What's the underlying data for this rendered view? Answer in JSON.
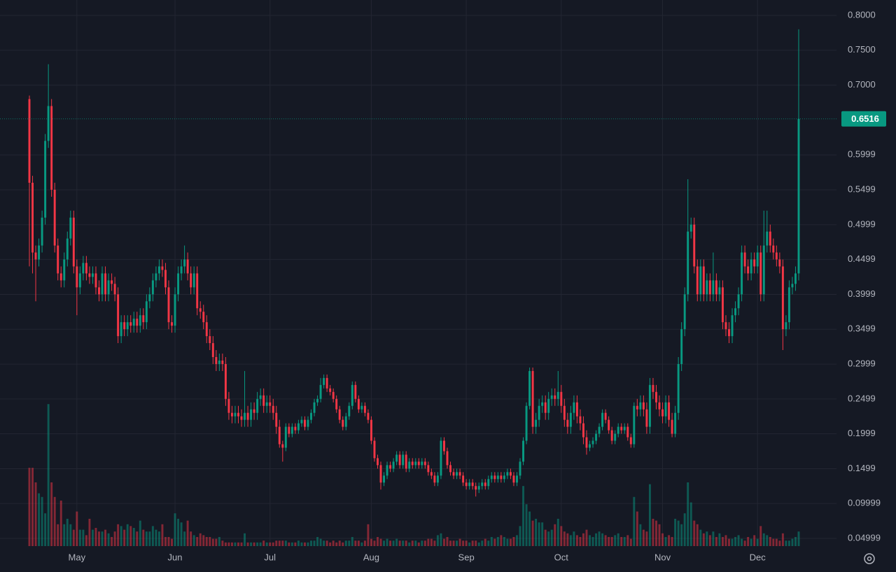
{
  "chart_data": {
    "type": "candlestick",
    "categories": [
      null,
      null,
      null,
      null,
      null,
      null,
      null,
      null,
      null,
      null,
      null,
      null,
      null,
      null,
      null,
      "May",
      null,
      null,
      null,
      null,
      null,
      null,
      null,
      null,
      null,
      null,
      null,
      null,
      null,
      null,
      null,
      null,
      null,
      null,
      null,
      null,
      null,
      null,
      null,
      null,
      null,
      null,
      null,
      null,
      null,
      null,
      "Jun",
      null,
      null,
      null,
      null,
      null,
      null,
      null,
      null,
      null,
      null,
      null,
      null,
      null,
      null,
      null,
      null,
      null,
      null,
      null,
      null,
      null,
      null,
      null,
      null,
      null,
      null,
      null,
      null,
      null,
      "Jul",
      null,
      null,
      null,
      null,
      null,
      null,
      null,
      null,
      null,
      null,
      null,
      null,
      null,
      null,
      null,
      null,
      null,
      null,
      null,
      null,
      null,
      null,
      null,
      null,
      null,
      null,
      null,
      null,
      null,
      null,
      null,
      "Aug",
      null,
      null,
      null,
      null,
      null,
      null,
      null,
      null,
      null,
      null,
      null,
      null,
      null,
      null,
      null,
      null,
      null,
      null,
      null,
      null,
      null,
      null,
      null,
      null,
      null,
      null,
      null,
      null,
      null,
      "Sep",
      null,
      null,
      null,
      null,
      null,
      null,
      null,
      null,
      null,
      null,
      null,
      null,
      null,
      null,
      null,
      null,
      null,
      null,
      null,
      null,
      null,
      null,
      null,
      null,
      null,
      null,
      null,
      null,
      null,
      "Oct",
      null,
      null,
      null,
      null,
      null,
      null,
      null,
      null,
      null,
      null,
      null,
      null,
      null,
      null,
      null,
      null,
      null,
      null,
      null,
      null,
      null,
      null,
      null,
      null,
      null,
      null,
      null,
      null,
      null,
      null,
      null,
      "Nov",
      null,
      null,
      null,
      null,
      null,
      null,
      null,
      null,
      null,
      null,
      null,
      null,
      null,
      null,
      null,
      null,
      null,
      null,
      null,
      null,
      null,
      null,
      null,
      null,
      null,
      null,
      null,
      null,
      null,
      "Dec",
      null,
      null,
      null,
      null,
      null,
      null,
      null,
      null,
      null,
      null,
      null,
      null,
      null
    ],
    "open": [
      0.68,
      0.56,
      0.46,
      0.45,
      0.47,
      0.51,
      0.62,
      0.67,
      0.55,
      0.47,
      0.43,
      0.42,
      0.45,
      0.48,
      0.51,
      0.44,
      0.41,
      0.43,
      0.445,
      0.43,
      0.425,
      0.43,
      0.41,
      0.4,
      0.43,
      0.4,
      0.42,
      0.415,
      0.4,
      0.34,
      0.36,
      0.35,
      0.36,
      0.355,
      0.365,
      0.355,
      0.37,
      0.36,
      0.39,
      0.4,
      0.42,
      0.43,
      0.44,
      0.435,
      0.41,
      0.36,
      0.355,
      0.4,
      0.43,
      0.44,
      0.45,
      0.43,
      0.41,
      0.43,
      0.38,
      0.375,
      0.36,
      0.34,
      0.33,
      0.31,
      0.3,
      0.305,
      0.3,
      0.25,
      0.23,
      0.225,
      0.23,
      0.225,
      0.22,
      0.23,
      0.22,
      0.235,
      0.23,
      0.25,
      0.255,
      0.24,
      0.245,
      0.24,
      0.23,
      0.21,
      0.185,
      0.18,
      0.21,
      0.2,
      0.21,
      0.205,
      0.215,
      0.22,
      0.21,
      0.22,
      0.23,
      0.245,
      0.25,
      0.27,
      0.28,
      0.265,
      0.26,
      0.25,
      0.235,
      0.22,
      0.21,
      0.225,
      0.24,
      0.27,
      0.25,
      0.235,
      0.24,
      0.23,
      0.22,
      0.19,
      0.165,
      0.155,
      0.13,
      0.14,
      0.155,
      0.15,
      0.16,
      0.17,
      0.155,
      0.17,
      0.15,
      0.16,
      0.155,
      0.16,
      0.155,
      0.16,
      0.155,
      0.145,
      0.14,
      0.13,
      0.14,
      0.19,
      0.175,
      0.155,
      0.145,
      0.14,
      0.145,
      0.14,
      0.13,
      0.125,
      0.13,
      0.125,
      0.12,
      0.125,
      0.13,
      0.125,
      0.135,
      0.14,
      0.135,
      0.14,
      0.135,
      0.14,
      0.145,
      0.14,
      0.13,
      0.14,
      0.16,
      0.19,
      0.24,
      0.29,
      0.21,
      0.22,
      0.24,
      0.245,
      0.23,
      0.25,
      0.255,
      0.25,
      0.26,
      0.24,
      0.22,
      0.21,
      0.23,
      0.245,
      0.225,
      0.215,
      0.195,
      0.18,
      0.185,
      0.19,
      0.2,
      0.21,
      0.23,
      0.22,
      0.205,
      0.19,
      0.2,
      0.21,
      0.205,
      0.21,
      0.195,
      0.185,
      0.24,
      0.235,
      0.245,
      0.235,
      0.21,
      0.27,
      0.26,
      0.245,
      0.235,
      0.225,
      0.245,
      0.22,
      0.2,
      0.23,
      0.3,
      0.35,
      0.4,
      0.49,
      0.5,
      0.44,
      0.4,
      0.44,
      0.4,
      0.42,
      0.4,
      0.42,
      0.4,
      0.41,
      0.36,
      0.35,
      0.34,
      0.37,
      0.38,
      0.4,
      0.46,
      0.44,
      0.43,
      0.45,
      0.44,
      0.46,
      0.4,
      0.47,
      0.49,
      0.47,
      0.46,
      0.45,
      0.44,
      0.35,
      0.36,
      0.41,
      0.415,
      0.43
    ],
    "high": [
      0.685,
      0.57,
      0.47,
      0.48,
      0.52,
      0.63,
      0.73,
      0.68,
      0.56,
      0.48,
      0.44,
      0.46,
      0.49,
      0.52,
      0.52,
      0.45,
      0.44,
      0.455,
      0.455,
      0.44,
      0.44,
      0.44,
      0.42,
      0.44,
      0.44,
      0.43,
      0.43,
      0.425,
      0.41,
      0.37,
      0.37,
      0.37,
      0.37,
      0.375,
      0.375,
      0.38,
      0.38,
      0.4,
      0.41,
      0.43,
      0.44,
      0.45,
      0.45,
      0.445,
      0.42,
      0.37,
      0.41,
      0.44,
      0.45,
      0.47,
      0.46,
      0.44,
      0.44,
      0.44,
      0.39,
      0.385,
      0.37,
      0.35,
      0.34,
      0.32,
      0.315,
      0.315,
      0.31,
      0.26,
      0.24,
      0.24,
      0.24,
      0.235,
      0.29,
      0.24,
      0.245,
      0.245,
      0.26,
      0.265,
      0.265,
      0.255,
      0.255,
      0.25,
      0.24,
      0.22,
      0.19,
      0.215,
      0.215,
      0.215,
      0.215,
      0.22,
      0.225,
      0.225,
      0.225,
      0.235,
      0.25,
      0.255,
      0.28,
      0.285,
      0.285,
      0.27,
      0.265,
      0.255,
      0.24,
      0.225,
      0.23,
      0.245,
      0.275,
      0.275,
      0.255,
      0.245,
      0.245,
      0.235,
      0.225,
      0.195,
      0.17,
      0.16,
      0.145,
      0.16,
      0.16,
      0.165,
      0.175,
      0.175,
      0.175,
      0.175,
      0.165,
      0.165,
      0.165,
      0.165,
      0.165,
      0.165,
      0.16,
      0.15,
      0.145,
      0.145,
      0.195,
      0.195,
      0.18,
      0.16,
      0.15,
      0.15,
      0.15,
      0.145,
      0.135,
      0.135,
      0.135,
      0.13,
      0.13,
      0.135,
      0.135,
      0.14,
      0.145,
      0.145,
      0.145,
      0.145,
      0.145,
      0.15,
      0.15,
      0.145,
      0.145,
      0.165,
      0.195,
      0.245,
      0.295,
      0.295,
      0.23,
      0.25,
      0.255,
      0.255,
      0.26,
      0.265,
      0.265,
      0.29,
      0.27,
      0.25,
      0.23,
      0.24,
      0.255,
      0.255,
      0.235,
      0.225,
      0.205,
      0.19,
      0.195,
      0.205,
      0.215,
      0.235,
      0.235,
      0.225,
      0.21,
      0.205,
      0.215,
      0.215,
      0.215,
      0.215,
      0.2,
      0.245,
      0.25,
      0.255,
      0.255,
      0.245,
      0.28,
      0.28,
      0.27,
      0.255,
      0.245,
      0.255,
      0.255,
      0.23,
      0.24,
      0.31,
      0.36,
      0.41,
      0.565,
      0.51,
      0.51,
      0.45,
      0.45,
      0.45,
      0.43,
      0.43,
      0.46,
      0.43,
      0.42,
      0.42,
      0.37,
      0.36,
      0.38,
      0.39,
      0.41,
      0.47,
      0.47,
      0.45,
      0.46,
      0.46,
      0.47,
      0.47,
      0.52,
      0.52,
      0.5,
      0.48,
      0.47,
      0.46,
      0.45,
      0.37,
      0.42,
      0.425,
      0.44,
      0.78
    ],
    "low": [
      0.44,
      0.43,
      0.39,
      0.44,
      0.46,
      0.5,
      0.61,
      0.54,
      0.46,
      0.42,
      0.41,
      0.41,
      0.44,
      0.47,
      0.43,
      0.37,
      0.4,
      0.42,
      0.42,
      0.415,
      0.415,
      0.4,
      0.39,
      0.39,
      0.39,
      0.39,
      0.405,
      0.39,
      0.33,
      0.33,
      0.34,
      0.34,
      0.345,
      0.345,
      0.345,
      0.345,
      0.35,
      0.35,
      0.38,
      0.39,
      0.41,
      0.42,
      0.425,
      0.4,
      0.35,
      0.345,
      0.345,
      0.39,
      0.42,
      0.43,
      0.42,
      0.4,
      0.4,
      0.37,
      0.365,
      0.35,
      0.33,
      0.32,
      0.3,
      0.29,
      0.29,
      0.29,
      0.24,
      0.22,
      0.215,
      0.215,
      0.215,
      0.21,
      0.21,
      0.21,
      0.21,
      0.22,
      0.22,
      0.24,
      0.23,
      0.23,
      0.23,
      0.22,
      0.2,
      0.18,
      0.16,
      0.175,
      0.195,
      0.195,
      0.2,
      0.2,
      0.21,
      0.205,
      0.205,
      0.215,
      0.225,
      0.24,
      0.245,
      0.265,
      0.26,
      0.255,
      0.245,
      0.23,
      0.215,
      0.205,
      0.205,
      0.22,
      0.235,
      0.245,
      0.23,
      0.23,
      0.225,
      0.215,
      0.185,
      0.16,
      0.15,
      0.12,
      0.125,
      0.135,
      0.145,
      0.145,
      0.155,
      0.15,
      0.15,
      0.145,
      0.145,
      0.15,
      0.15,
      0.15,
      0.15,
      0.15,
      0.14,
      0.135,
      0.125,
      0.125,
      0.135,
      0.17,
      0.15,
      0.14,
      0.135,
      0.135,
      0.135,
      0.125,
      0.12,
      0.12,
      0.12,
      0.11,
      0.115,
      0.12,
      0.12,
      0.12,
      0.13,
      0.13,
      0.13,
      0.13,
      0.13,
      0.135,
      0.135,
      0.125,
      0.125,
      0.135,
      0.155,
      0.185,
      0.235,
      0.2,
      0.2,
      0.21,
      0.23,
      0.22,
      0.22,
      0.24,
      0.24,
      0.24,
      0.23,
      0.21,
      0.2,
      0.2,
      0.22,
      0.215,
      0.205,
      0.185,
      0.17,
      0.175,
      0.18,
      0.185,
      0.195,
      0.205,
      0.215,
      0.2,
      0.185,
      0.185,
      0.195,
      0.2,
      0.2,
      0.19,
      0.18,
      0.18,
      0.225,
      0.225,
      0.225,
      0.2,
      0.2,
      0.25,
      0.235,
      0.225,
      0.215,
      0.215,
      0.21,
      0.195,
      0.195,
      0.22,
      0.29,
      0.34,
      0.39,
      0.48,
      0.43,
      0.39,
      0.39,
      0.39,
      0.39,
      0.39,
      0.39,
      0.39,
      0.39,
      0.35,
      0.34,
      0.33,
      0.33,
      0.36,
      0.37,
      0.39,
      0.43,
      0.42,
      0.42,
      0.43,
      0.43,
      0.39,
      0.39,
      0.46,
      0.46,
      0.45,
      0.44,
      0.43,
      0.32,
      0.34,
      0.35,
      0.4,
      0.405,
      0.42
    ],
    "close": [
      0.56,
      0.46,
      0.45,
      0.47,
      0.51,
      0.62,
      0.67,
      0.55,
      0.47,
      0.43,
      0.42,
      0.45,
      0.48,
      0.51,
      0.44,
      0.41,
      0.43,
      0.445,
      0.43,
      0.425,
      0.43,
      0.41,
      0.4,
      0.43,
      0.4,
      0.42,
      0.415,
      0.4,
      0.34,
      0.36,
      0.35,
      0.36,
      0.355,
      0.365,
      0.355,
      0.37,
      0.36,
      0.39,
      0.4,
      0.42,
      0.43,
      0.44,
      0.435,
      0.41,
      0.36,
      0.355,
      0.4,
      0.43,
      0.44,
      0.45,
      0.43,
      0.41,
      0.43,
      0.38,
      0.375,
      0.36,
      0.34,
      0.33,
      0.31,
      0.3,
      0.305,
      0.3,
      0.25,
      0.23,
      0.225,
      0.23,
      0.225,
      0.22,
      0.23,
      0.22,
      0.235,
      0.23,
      0.25,
      0.255,
      0.24,
      0.245,
      0.24,
      0.23,
      0.21,
      0.185,
      0.18,
      0.21,
      0.2,
      0.21,
      0.205,
      0.215,
      0.22,
      0.21,
      0.22,
      0.23,
      0.245,
      0.25,
      0.27,
      0.28,
      0.265,
      0.26,
      0.25,
      0.235,
      0.22,
      0.21,
      0.225,
      0.24,
      0.27,
      0.25,
      0.235,
      0.24,
      0.23,
      0.22,
      0.19,
      0.165,
      0.155,
      0.13,
      0.14,
      0.155,
      0.15,
      0.16,
      0.17,
      0.155,
      0.17,
      0.15,
      0.16,
      0.155,
      0.16,
      0.155,
      0.16,
      0.155,
      0.145,
      0.14,
      0.13,
      0.14,
      0.19,
      0.175,
      0.155,
      0.145,
      0.14,
      0.145,
      0.14,
      0.13,
      0.125,
      0.13,
      0.125,
      0.12,
      0.125,
      0.13,
      0.125,
      0.135,
      0.14,
      0.135,
      0.14,
      0.135,
      0.14,
      0.145,
      0.14,
      0.13,
      0.14,
      0.16,
      0.19,
      0.24,
      0.29,
      0.21,
      0.22,
      0.24,
      0.245,
      0.23,
      0.25,
      0.255,
      0.25,
      0.26,
      0.24,
      0.22,
      0.21,
      0.23,
      0.245,
      0.225,
      0.215,
      0.195,
      0.18,
      0.185,
      0.19,
      0.2,
      0.21,
      0.23,
      0.22,
      0.205,
      0.19,
      0.2,
      0.21,
      0.205,
      0.21,
      0.195,
      0.185,
      0.24,
      0.235,
      0.245,
      0.235,
      0.21,
      0.27,
      0.26,
      0.245,
      0.235,
      0.225,
      0.245,
      0.22,
      0.2,
      0.23,
      0.3,
      0.35,
      0.4,
      0.49,
      0.5,
      0.44,
      0.4,
      0.44,
      0.4,
      0.42,
      0.4,
      0.42,
      0.4,
      0.41,
      0.36,
      0.35,
      0.34,
      0.37,
      0.38,
      0.4,
      0.46,
      0.44,
      0.43,
      0.45,
      0.44,
      0.46,
      0.4,
      0.47,
      0.49,
      0.47,
      0.46,
      0.45,
      0.44,
      0.35,
      0.36,
      0.41,
      0.415,
      0.43,
      0.6516
    ],
    "volume": [
      43,
      43,
      35,
      29,
      27,
      18,
      78,
      35,
      27,
      12,
      25,
      12,
      15,
      12,
      9,
      19,
      9,
      9,
      6,
      15,
      9,
      10,
      8,
      8,
      9,
      7,
      5,
      8,
      12,
      11,
      9,
      12,
      11,
      10,
      8,
      14,
      9,
      8,
      8,
      11,
      9,
      8,
      12,
      5,
      5,
      4,
      18,
      15,
      13,
      8,
      14,
      8,
      6,
      5,
      7,
      6,
      5,
      5,
      4,
      4,
      5,
      3,
      2,
      2,
      2,
      2,
      2,
      2,
      7,
      2,
      2,
      2,
      2,
      2,
      3,
      2,
      2,
      2,
      3,
      3,
      3,
      3,
      2,
      2,
      2,
      3,
      2,
      2,
      2,
      3,
      3,
      5,
      4,
      3,
      3,
      2,
      3,
      2,
      3,
      2,
      3,
      3,
      5,
      3,
      3,
      2,
      3,
      12,
      4,
      3,
      5,
      4,
      3,
      4,
      3,
      3,
      4,
      3,
      3,
      3,
      2,
      3,
      3,
      2,
      3,
      3,
      4,
      4,
      3,
      6,
      7,
      4,
      5,
      3,
      3,
      3,
      4,
      3,
      3,
      2,
      3,
      3,
      2,
      3,
      4,
      3,
      5,
      4,
      5,
      6,
      5,
      4,
      4,
      5,
      6,
      11,
      33,
      23,
      19,
      14,
      15,
      13,
      13,
      9,
      8,
      9,
      12,
      15,
      11,
      8,
      7,
      6,
      8,
      6,
      5,
      7,
      9,
      6,
      5,
      7,
      8,
      7,
      6,
      5,
      5,
      6,
      7,
      5,
      5,
      6,
      4,
      27,
      19,
      12,
      9,
      8,
      34,
      15,
      14,
      12,
      7,
      5,
      6,
      5,
      15,
      14,
      12,
      18,
      35,
      24,
      14,
      12,
      9,
      7,
      8,
      6,
      8,
      5,
      7,
      5,
      6,
      4,
      4,
      5,
      6,
      4,
      3,
      5,
      4,
      6,
      4,
      11,
      7,
      6,
      5,
      4,
      4,
      3,
      7,
      3,
      3,
      4,
      5,
      8
    ],
    "ylim": [
      0.0389,
      0.8221
    ],
    "yticks": [
      {
        "value": 0.8,
        "label": "0.8000"
      },
      {
        "value": 0.75,
        "label": "0.7500"
      },
      {
        "value": 0.7,
        "label": "0.7000"
      },
      0.5999,
      0.5499,
      0.4999,
      0.4499,
      0.3999,
      0.3499,
      0.2999,
      0.2499,
      0.1999,
      0.1499,
      0.09999,
      0.04999
    ],
    "volume_ylim": [
      0,
      100
    ],
    "grid": true,
    "up_color": "#089981",
    "down_color": "#f23645"
  }
}
